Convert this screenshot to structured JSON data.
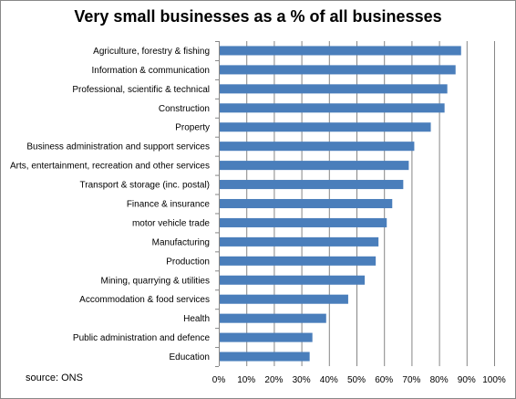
{
  "chart_data": {
    "type": "bar",
    "orientation": "horizontal",
    "title": "Very small businesses as a % of all businesses",
    "categories": [
      "Agriculture, forestry & fishing",
      "Information & communication",
      "Professional, scientific & technical",
      "Construction",
      "Property",
      "Business administration  and support services",
      "Arts, entertainment,  recreation and other services",
      "Transport & storage (inc. postal)",
      "Finance & insurance",
      "motor vehicle trade",
      "Manufacturing",
      "Production",
      "Mining, quarrying & utilities",
      "Accommodation & food services",
      "Health",
      "Public administration  and defence",
      "Education"
    ],
    "values": [
      88,
      86,
      83,
      82,
      77,
      71,
      69,
      67,
      63,
      61,
      58,
      57,
      53,
      47,
      39,
      34,
      33
    ],
    "xlim": [
      0,
      100
    ],
    "ticks": [
      "0%",
      "10%",
      "20%",
      "30%",
      "40%",
      "50%",
      "60%",
      "70%",
      "80%",
      "90%",
      "100%"
    ],
    "grid": "vertical",
    "legend": "none",
    "bar_color": "#4A7EBB",
    "source": "source: ONS"
  }
}
